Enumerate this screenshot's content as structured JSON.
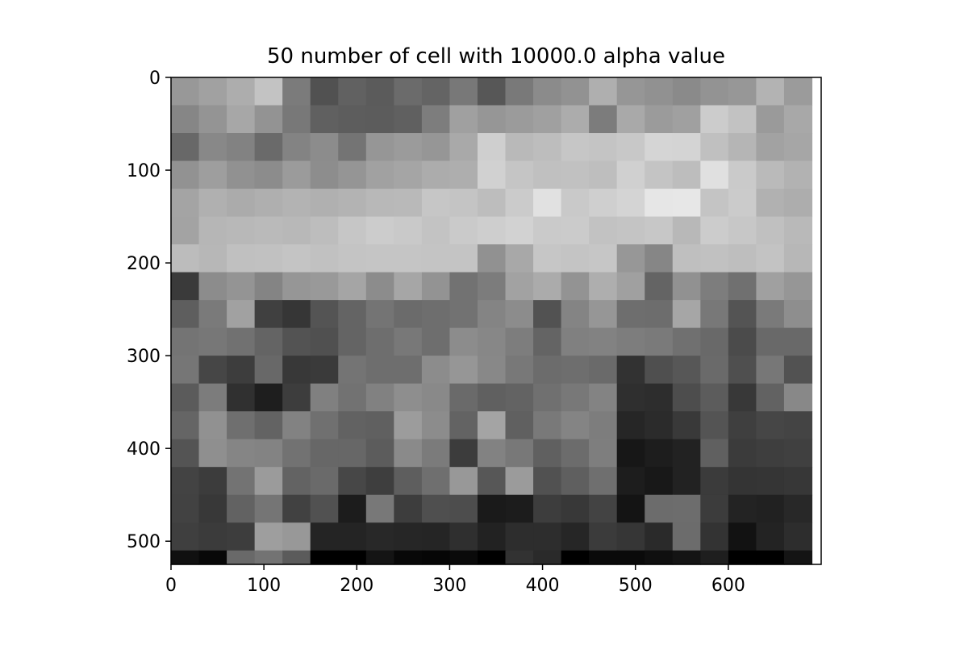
{
  "chart_data": {
    "type": "heatmap",
    "title": "50 number of cell with 10000.0 alpha value",
    "xlabel": "",
    "ylabel": "",
    "colormap": "gray",
    "xlim": [
      0,
      700
    ],
    "ylim": [
      525,
      0
    ],
    "x_ticks": [
      0,
      100,
      200,
      300,
      400,
      500,
      600
    ],
    "y_ticks": [
      0,
      100,
      200,
      300,
      400,
      500
    ],
    "grid": false,
    "cell_width": 30,
    "cell_height": 30,
    "cell_values": [
      [
        152,
        161,
        173,
        195,
        123,
        81,
        97,
        91,
        107,
        100,
        120,
        87,
        121,
        139,
        146,
        175,
        150,
        145,
        138,
        147,
        151,
        179,
        155
      ],
      [
        134,
        148,
        167,
        147,
        120,
        96,
        93,
        92,
        96,
        125,
        160,
        150,
        155,
        160,
        172,
        124,
        169,
        155,
        160,
        204,
        194,
        154,
        168
      ],
      [
        104,
        136,
        130,
        106,
        131,
        140,
        116,
        150,
        155,
        150,
        169,
        207,
        185,
        189,
        198,
        196,
        200,
        213,
        212,
        192,
        181,
        162,
        166
      ],
      [
        146,
        158,
        145,
        140,
        155,
        141,
        149,
        161,
        165,
        172,
        174,
        209,
        197,
        192,
        193,
        190,
        208,
        196,
        189,
        224,
        202,
        186,
        178
      ],
      [
        164,
        176,
        171,
        175,
        179,
        176,
        179,
        184,
        185,
        198,
        196,
        189,
        203,
        225,
        201,
        207,
        212,
        230,
        231,
        196,
        203,
        177,
        173
      ],
      [
        163,
        182,
        184,
        186,
        184,
        189,
        198,
        204,
        201,
        195,
        202,
        206,
        210,
        202,
        203,
        194,
        196,
        199,
        184,
        204,
        199,
        192,
        185
      ],
      [
        188,
        183,
        192,
        193,
        196,
        193,
        196,
        197,
        197,
        196,
        196,
        145,
        168,
        198,
        196,
        198,
        151,
        134,
        191,
        193,
        190,
        195,
        183
      ],
      [
        58,
        140,
        148,
        132,
        150,
        153,
        165,
        140,
        166,
        147,
        114,
        124,
        162,
        171,
        147,
        174,
        160,
        100,
        145,
        125,
        112,
        160,
        150
      ],
      [
        94,
        122,
        161,
        64,
        54,
        84,
        100,
        116,
        107,
        110,
        114,
        132,
        140,
        82,
        132,
        150,
        110,
        109,
        166,
        120,
        84,
        122,
        142
      ],
      [
        116,
        119,
        113,
        100,
        83,
        80,
        100,
        110,
        120,
        110,
        140,
        135,
        125,
        100,
        128,
        130,
        125,
        122,
        112,
        105,
        75,
        105,
        105
      ],
      [
        118,
        70,
        61,
        104,
        56,
        58,
        116,
        110,
        110,
        140,
        150,
        136,
        120,
        108,
        110,
        106,
        50,
        79,
        87,
        106,
        79,
        119,
        82
      ],
      [
        91,
        124,
        48,
        30,
        61,
        128,
        114,
        129,
        142,
        137,
        106,
        96,
        99,
        112,
        120,
        131,
        47,
        45,
        77,
        92,
        56,
        98,
        136
      ],
      [
        101,
        145,
        111,
        99,
        130,
        112,
        98,
        96,
        156,
        140,
        99,
        164,
        96,
        121,
        132,
        125,
        38,
        43,
        57,
        84,
        63,
        70,
        68
      ],
      [
        84,
        143,
        133,
        131,
        114,
        103,
        103,
        92,
        138,
        123,
        60,
        130,
        120,
        96,
        108,
        126,
        23,
        29,
        34,
        96,
        59,
        62,
        64
      ],
      [
        67,
        60,
        115,
        155,
        99,
        106,
        71,
        62,
        94,
        111,
        152,
        87,
        155,
        81,
        95,
        111,
        29,
        24,
        34,
        59,
        52,
        53,
        55
      ],
      [
        66,
        56,
        98,
        117,
        65,
        81,
        28,
        120,
        61,
        79,
        77,
        26,
        28,
        61,
        56,
        67,
        20,
        108,
        109,
        60,
        35,
        33,
        40
      ],
      [
        63,
        59,
        61,
        158,
        152,
        36,
        36,
        40,
        38,
        37,
        47,
        34,
        45,
        45,
        38,
        59,
        54,
        42,
        108,
        51,
        18,
        35,
        45
      ],
      [
        16,
        8,
        105,
        115,
        91,
        0,
        0,
        20,
        8,
        6,
        10,
        0,
        50,
        42,
        0,
        10,
        10,
        15,
        20,
        30,
        0,
        0,
        20
      ]
    ]
  }
}
